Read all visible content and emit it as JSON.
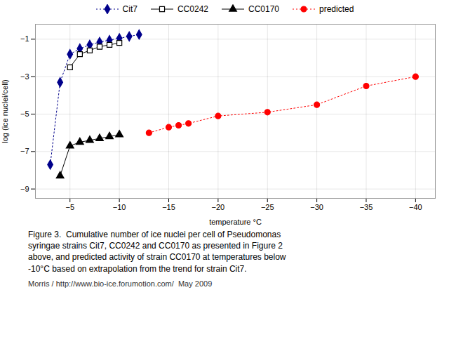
{
  "chart_data": {
    "type": "line",
    "xlabel": "temperature °C",
    "ylabel": "log (ice nuclei/cell)",
    "series": [
      {
        "name": "Cit7",
        "color": "#00008B",
        "marker": "diamond",
        "line_style": "dotted",
        "x": [
          -3,
          -4,
          -5,
          -6,
          -7,
          -8,
          -9,
          -10,
          -11,
          -12
        ],
        "values": [
          -7.7,
          -3.3,
          -1.8,
          -1.5,
          -1.3,
          -1.15,
          -1.05,
          -0.95,
          -0.85,
          -0.75
        ]
      },
      {
        "name": "CC0242",
        "color": "#000000",
        "marker": "open square",
        "line_style": "solid",
        "x": [
          -5,
          -6,
          -7,
          -8,
          -9,
          -10
        ],
        "values": [
          -2.5,
          -1.8,
          -1.6,
          -1.4,
          -1.3,
          -1.2
        ]
      },
      {
        "name": "CC0170",
        "color": "#000000",
        "marker": "triangle",
        "line_style": "solid",
        "x": [
          -4,
          -5,
          -6,
          -7,
          -8,
          -9,
          -10
        ],
        "values": [
          -8.3,
          -6.7,
          -6.5,
          -6.4,
          -6.3,
          -6.2,
          -6.1
        ]
      },
      {
        "name": "predicted",
        "color": "#ff0000",
        "marker": "circle",
        "line_style": "dotted",
        "x": [
          -13,
          -15,
          -16,
          -17,
          -20,
          -25,
          -30,
          -35,
          -40
        ],
        "values": [
          -6.0,
          -5.7,
          -5.6,
          -5.5,
          -5.1,
          -4.9,
          -4.5,
          -3.5,
          -3.0
        ]
      }
    ],
    "xlim": [
      -1.5,
      -42
    ],
    "ylim": [
      -9.5,
      -0.2
    ],
    "xticks": [
      -5,
      -10,
      -15,
      -20,
      -25,
      -30,
      -35,
      -40
    ],
    "yticks": [
      -9,
      -7,
      -5,
      -3,
      -1
    ],
    "grid": true,
    "legend": "top",
    "annotations": [
      "Figure 3.  Cumulative number of ice nuclei per cell of Pseudomonas",
      "syringae strains Cit7, CC0242 and CC0170 as presented in Figure 2",
      "above, and predicted activity of strain CC0170 at temperatures below",
      "-10°C based on extrapolation from the trend for strain Cit7.",
      "Morris / http://www.bio-ice.forumotion.com/  May 2009"
    ]
  }
}
